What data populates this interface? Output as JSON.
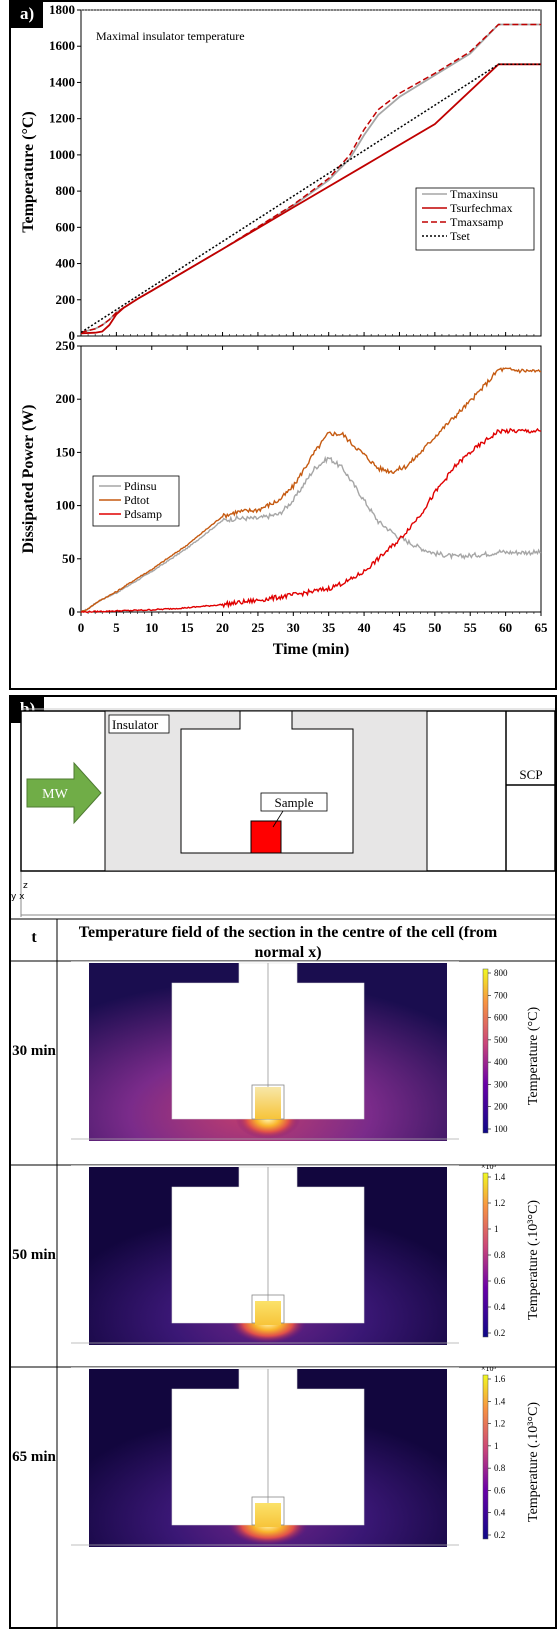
{
  "panel_a": {
    "label": "a)",
    "top_chart": {
      "type": "line",
      "annotation": "Maximal insulator temperature",
      "ylabel": "Temperature (°C)",
      "ylim": [
        0,
        1800
      ],
      "yticks": [
        0,
        200,
        400,
        600,
        800,
        1000,
        1200,
        1400,
        1600,
        1800
      ],
      "xlim": [
        0,
        65
      ],
      "legend_position": "middle-right",
      "series": [
        {
          "name": "Tmaxinsu",
          "color": "#a6a6a6",
          "dash": "solid",
          "x": [
            0,
            2,
            3,
            4,
            5,
            6,
            8,
            10,
            20,
            30,
            35,
            38,
            40,
            42,
            45,
            50,
            55,
            59,
            65
          ],
          "y": [
            20,
            40,
            60,
            90,
            130,
            155,
            205,
            250,
            480,
            720,
            860,
            980,
            1110,
            1220,
            1320,
            1440,
            1560,
            1720,
            1720
          ]
        },
        {
          "name": "Tsurfechmax",
          "color": "#c00000",
          "dash": "solid",
          "x": [
            0,
            2,
            3,
            4,
            5,
            6,
            8,
            10,
            20,
            30,
            40,
            50,
            59,
            65
          ],
          "y": [
            15,
            18,
            25,
            60,
            120,
            155,
            205,
            250,
            480,
            710,
            940,
            1170,
            1500,
            1500
          ]
        },
        {
          "name": "Tmaxsamp",
          "color": "#c00000",
          "dash": "dashed",
          "x": [
            0,
            2,
            3,
            4,
            5,
            6,
            8,
            10,
            20,
            30,
            35,
            38,
            40,
            42,
            45,
            50,
            55,
            59,
            65
          ],
          "y": [
            20,
            40,
            60,
            90,
            130,
            155,
            205,
            250,
            480,
            725,
            870,
            1000,
            1140,
            1250,
            1340,
            1450,
            1570,
            1720,
            1720
          ]
        },
        {
          "name": "Tset",
          "color": "#000000",
          "dash": "dotted",
          "x": [
            0,
            59,
            65
          ],
          "y": [
            20,
            1500,
            1500
          ]
        }
      ],
      "threshold": 1800
    },
    "bottom_chart": {
      "type": "line",
      "ylabel": "Dissipated Power (W)",
      "xlabel": "Time (min)",
      "ylim": [
        0,
        250
      ],
      "yticks": [
        0,
        50,
        100,
        150,
        200,
        250
      ],
      "xlim": [
        0,
        65
      ],
      "xticks": [
        0,
        5,
        10,
        15,
        20,
        25,
        30,
        35,
        40,
        45,
        50,
        55,
        60,
        65
      ],
      "legend_position": "middle-left",
      "series": [
        {
          "name": "Pdinsu",
          "color": "#a6a6a6",
          "x": [
            0,
            1,
            2,
            3,
            5,
            8,
            10,
            15,
            20,
            22,
            25,
            28,
            30,
            33,
            35,
            37,
            40,
            42,
            45,
            48,
            50,
            53,
            55,
            58,
            59,
            60,
            62,
            65
          ],
          "y": [
            0,
            3,
            8,
            12,
            18,
            30,
            38,
            60,
            86,
            88,
            88,
            92,
            105,
            135,
            145,
            135,
            105,
            85,
            70,
            60,
            55,
            52,
            53,
            55,
            57,
            56,
            56,
            56
          ]
        },
        {
          "name": "Pdtot",
          "color": "#c55a11",
          "x": [
            0,
            1,
            2,
            3,
            5,
            8,
            10,
            15,
            20,
            22,
            25,
            28,
            30,
            33,
            35,
            37,
            38,
            40,
            42,
            44,
            46,
            48,
            50,
            53,
            55,
            58,
            59,
            60,
            62,
            65
          ],
          "y": [
            0,
            3,
            8,
            12,
            19,
            32,
            40,
            63,
            90,
            94,
            96,
            105,
            118,
            150,
            168,
            167,
            160,
            148,
            135,
            132,
            137,
            150,
            165,
            185,
            198,
            220,
            228,
            228,
            227,
            226
          ]
        },
        {
          "name": "Pdsamp",
          "color": "#e00000",
          "x": [
            0,
            5,
            10,
            15,
            20,
            25,
            30,
            35,
            38,
            40,
            42,
            45,
            48,
            50,
            53,
            55,
            58,
            59,
            60,
            62,
            65
          ],
          "y": [
            0,
            1,
            2,
            4,
            7,
            11,
            16,
            22,
            30,
            38,
            50,
            68,
            92,
            112,
            138,
            150,
            165,
            170,
            170,
            170,
            170
          ]
        }
      ]
    }
  },
  "panel_b": {
    "label": "b)",
    "schematic": {
      "mw_label": "MW",
      "insulator_label": "Insulator",
      "sample_label": "Sample",
      "scp_label": "SCP",
      "axis_z": "z",
      "axis_yx": "y x",
      "colors": {
        "arrow": "#70ad47",
        "insulator": "#e7e6e6",
        "sample": "#ff0000"
      }
    },
    "table": {
      "col_t": "t",
      "col_title": "Temperature field of the section in the centre of the cell (from normal x)",
      "rows": [
        {
          "time": "30 min",
          "colorbar_label": "Temperature (°C)",
          "colorbar_exponent": "",
          "ticks": [
            "800",
            "700",
            "600",
            "500",
            "400",
            "300",
            "200",
            "100"
          ]
        },
        {
          "time": "50 min",
          "colorbar_label": "Temperature (.10³°C)",
          "colorbar_exponent": "×10³",
          "ticks": [
            "1.4",
            "1.2",
            "1",
            "0.8",
            "0.6",
            "0.4",
            "0.2"
          ]
        },
        {
          "time": "65 min",
          "colorbar_label": "Temperature (.10³°C)",
          "colorbar_exponent": "×10³",
          "ticks": [
            "1.6",
            "1.4",
            "1.2",
            "1",
            "0.8",
            "0.6",
            "0.4",
            "0.2"
          ]
        }
      ]
    }
  }
}
